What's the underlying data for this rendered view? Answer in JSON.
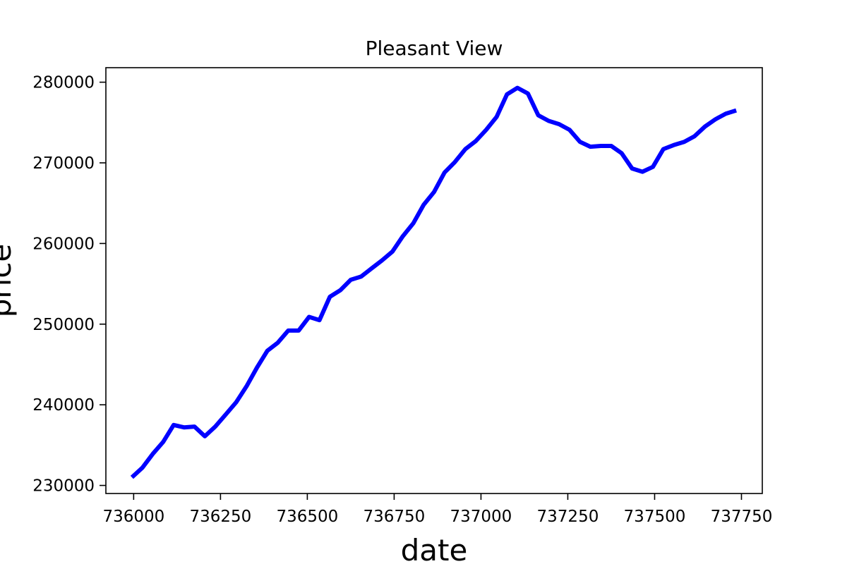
{
  "chart_data": {
    "type": "line",
    "title": "Pleasant View",
    "xlabel": "date",
    "ylabel": "price",
    "xlim": [
      735920,
      737810
    ],
    "ylim": [
      229000,
      281800
    ],
    "grid": false,
    "line_color": "#0000ff",
    "x_ticks": [
      736000,
      736250,
      736500,
      736750,
      737000,
      737250,
      737500,
      737750
    ],
    "y_ticks": [
      230000,
      240000,
      250000,
      260000,
      270000,
      280000
    ],
    "x_tick_labels": [
      "736000",
      "736250",
      "736500",
      "736750",
      "737000",
      "737250",
      "737500",
      "737750"
    ],
    "y_tick_labels": [
      "230000",
      "240000",
      "250000",
      "260000",
      "270000",
      "280000"
    ],
    "series": [
      {
        "x": [
          735995,
          736025,
          736055,
          736085,
          736115,
          736145,
          736175,
          736205,
          736235,
          736265,
          736295,
          736325,
          736355,
          736385,
          736415,
          736445,
          736475,
          736505,
          736535,
          736565,
          736595,
          736625,
          736655,
          736685,
          736715,
          736745,
          736775,
          736805,
          736835,
          736865,
          736895,
          736925,
          736955,
          736985,
          737015,
          737045,
          737075,
          737105,
          737135,
          737165,
          737195,
          737225,
          737255,
          737285,
          737315,
          737345,
          737375,
          737405,
          737435,
          737465,
          737495,
          737525,
          737555,
          737585,
          737615,
          737645,
          737675,
          737705,
          737735
        ],
        "y": [
          231000,
          232200,
          233900,
          235400,
          237500,
          237200,
          237300,
          236100,
          237300,
          238800,
          240300,
          242300,
          244600,
          246700,
          247700,
          249200,
          249200,
          250900,
          250500,
          253400,
          254200,
          255500,
          255900,
          256900,
          257900,
          259000,
          260900,
          262500,
          264800,
          266400,
          268800,
          270100,
          271700,
          272700,
          274100,
          275700,
          278500,
          279300,
          278600,
          275900,
          275200,
          274800,
          274100,
          272600,
          272000,
          272100,
          272100,
          271200,
          269300,
          268900,
          269500,
          271700,
          272200,
          272600,
          273300,
          274500,
          275400,
          276100,
          276500
        ]
      }
    ]
  }
}
